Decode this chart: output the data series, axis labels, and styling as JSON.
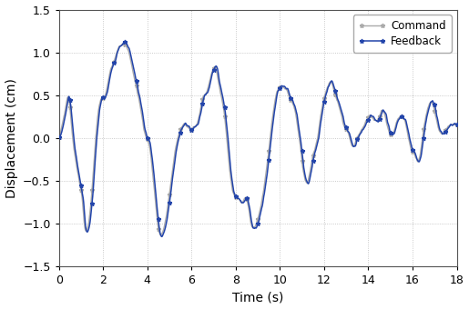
{
  "title": "",
  "xlabel": "Time (s)",
  "ylabel": "Displacement (cm)",
  "xlim": [
    0,
    18
  ],
  "ylim": [
    -1.5,
    1.5
  ],
  "xticks": [
    0,
    2,
    4,
    6,
    8,
    10,
    12,
    14,
    16,
    18
  ],
  "yticks": [
    -1.5,
    -1.0,
    -0.5,
    0.0,
    0.5,
    1.0,
    1.5
  ],
  "command_color": "#aaaaaa",
  "feedback_color": "#2244aa",
  "legend_labels": [
    "Command",
    "Feedback"
  ],
  "grid_color": "#bbbbbb",
  "grid_style": ":",
  "marker": "*",
  "marker_size": 3.5,
  "linewidth_cmd": 1.0,
  "linewidth_fb": 1.1,
  "waypoints_t": [
    0.0,
    0.15,
    0.3,
    0.45,
    0.55,
    0.65,
    0.75,
    0.85,
    0.95,
    1.05,
    1.15,
    1.3,
    1.5,
    1.7,
    1.9,
    2.1,
    2.3,
    2.5,
    2.7,
    2.9,
    3.1,
    3.3,
    3.5,
    3.7,
    3.9,
    4.1,
    4.3,
    4.5,
    4.7,
    4.9,
    5.1,
    5.3,
    5.5,
    5.7,
    5.9,
    6.1,
    6.3,
    6.5,
    6.7,
    6.9,
    7.1,
    7.3,
    7.5,
    7.7,
    7.9,
    8.1,
    8.3,
    8.5,
    8.7,
    8.9,
    9.1,
    9.3,
    9.5,
    9.7,
    9.9,
    10.1,
    10.3,
    10.5,
    10.7,
    10.9,
    11.1,
    11.3,
    11.5,
    11.7,
    11.9,
    12.1,
    12.3,
    12.5,
    12.7,
    12.9,
    13.1,
    13.3,
    13.5,
    13.7,
    13.9,
    14.1,
    14.3,
    14.5,
    14.7,
    14.9,
    15.1,
    15.3,
    15.5,
    15.7,
    15.9,
    16.1,
    16.3,
    16.5,
    16.7,
    16.9,
    17.1,
    17.3,
    17.5,
    17.7,
    18.0
  ],
  "waypoints_y": [
    0.0,
    0.15,
    0.35,
    0.45,
    0.2,
    -0.05,
    -0.25,
    -0.4,
    -0.55,
    -0.7,
    -1.0,
    -1.05,
    -0.6,
    0.1,
    0.45,
    0.5,
    0.75,
    0.9,
    1.05,
    1.1,
    1.05,
    0.85,
    0.6,
    0.35,
    0.05,
    -0.1,
    -0.55,
    -1.05,
    -1.1,
    -0.85,
    -0.45,
    -0.1,
    0.1,
    0.15,
    0.1,
    0.12,
    0.2,
    0.45,
    0.55,
    0.75,
    0.8,
    0.55,
    0.25,
    -0.3,
    -0.65,
    -0.7,
    -0.75,
    -0.72,
    -1.0,
    -1.02,
    -0.85,
    -0.55,
    -0.15,
    0.3,
    0.55,
    0.6,
    0.55,
    0.45,
    0.3,
    -0.05,
    -0.45,
    -0.48,
    -0.2,
    0.0,
    0.35,
    0.55,
    0.65,
    0.5,
    0.35,
    0.15,
    0.05,
    -0.1,
    0.0,
    0.1,
    0.2,
    0.25,
    0.2,
    0.25,
    0.3,
    0.1,
    0.05,
    0.2,
    0.25,
    0.15,
    -0.1,
    -0.2,
    -0.25,
    0.1,
    0.35,
    0.4,
    0.2,
    0.05,
    0.1,
    0.15,
    0.15
  ]
}
